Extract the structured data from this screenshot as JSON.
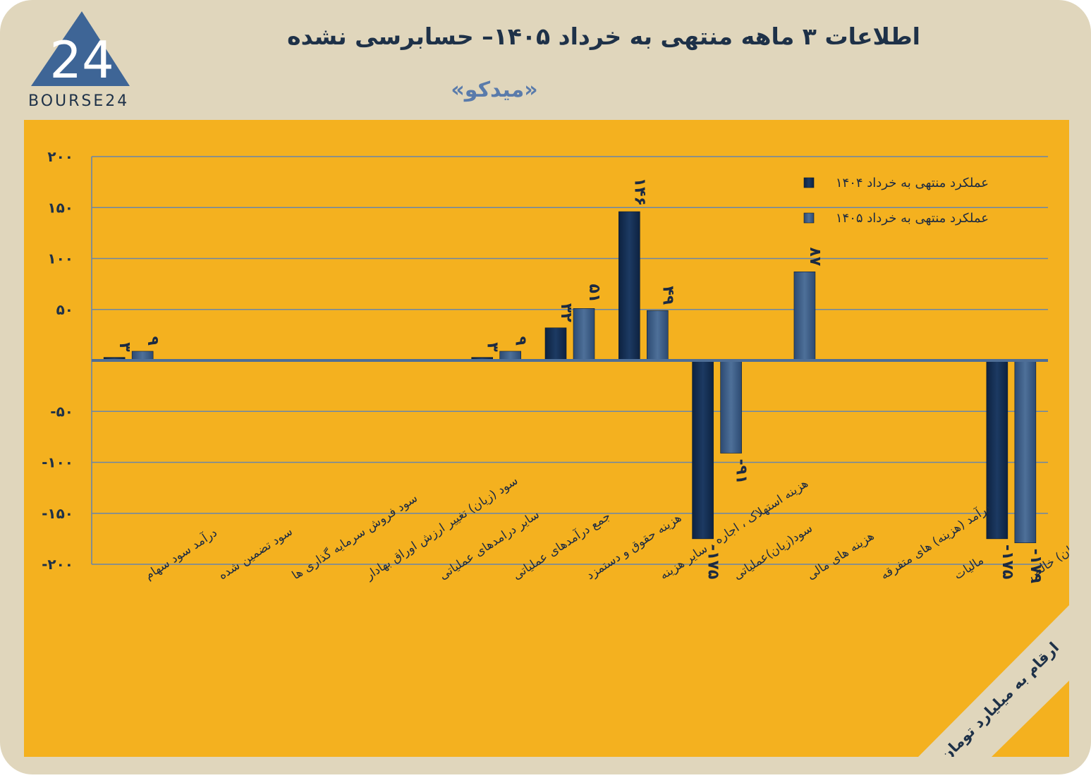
{
  "logo": {
    "text": "BOURSE24",
    "mark": "24"
  },
  "title": "اطلاعات ۳ ماهه منتهی به خرداد  ۱۴۰۵– حسابرسی نشده",
  "subtitle": "«میدکو»",
  "colors": {
    "background": "#e0d6bc",
    "panel": "#f4b11f",
    "series_1404": "#1c3a63",
    "series_1405": "#4e7099",
    "axis_text": "#1e3148",
    "grid": "#6a86a8"
  },
  "chart_data": {
    "type": "bar",
    "categories": [
      "درآمد سود سهام",
      "سود تضمین شده",
      "سود فروش سرمایه گذاری ها",
      "سود (زیان) تغییر ارزش اوراق بهادار",
      "سایر درامدهای عملیاتی",
      "جمع درآمدهای عملیاتی",
      "هزینه حقوق و دستمزد",
      "هزینه استهلاک ، اجاره ، سایر هزینه",
      "سود(زیان)عملیاتی",
      "هزینه های مالی",
      "درآمد (هزینه) های متفرقه",
      "مالیات",
      "سود(زیان) خالص"
    ],
    "series": [
      {
        "name": "عملکرد منتهی به خرداد ۱۴۰۴",
        "values": [
          3,
          0,
          0,
          0,
          0,
          3,
          32,
          146,
          -175,
          0,
          0,
          0,
          -175
        ]
      },
      {
        "name": "عملکرد منتهی به خرداد ۱۴۰۵",
        "values": [
          9,
          0,
          0,
          0,
          0,
          9,
          51,
          49,
          -91,
          87,
          0,
          0,
          -179
        ]
      }
    ],
    "value_labels": [
      [
        "۳",
        null,
        null,
        null,
        null,
        "۳",
        "۳۲",
        "۱۴۶",
        "-۱۷۵",
        null,
        null,
        null,
        "-۱۷۵"
      ],
      [
        "۹",
        null,
        null,
        null,
        null,
        "۹",
        "۵۱",
        "۴۹",
        "-۹۱",
        "۸۷",
        null,
        null,
        "-۱۷۹"
      ]
    ],
    "ylim": [
      -200,
      200
    ],
    "yticks": [
      200,
      150,
      100,
      50,
      -50,
      -100,
      -150,
      -200
    ],
    "ytick_labels": [
      "۲۰۰",
      "۱۵۰",
      "۱۰۰",
      "۵۰",
      "-۵۰",
      "-۱۰۰",
      "-۱۵۰",
      "-۲۰۰"
    ],
    "grid": true,
    "legend_position": "top-right",
    "unit_note": "ارقام به میلیارد تومان"
  }
}
